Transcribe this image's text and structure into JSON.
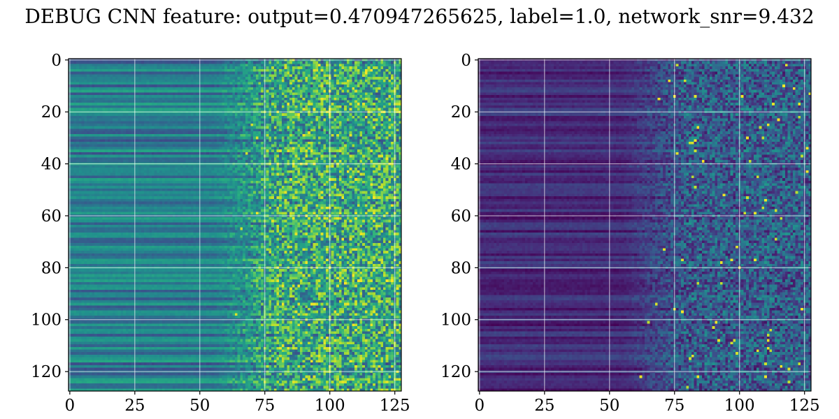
{
  "figure": {
    "title": "DEBUG CNN feature: output=0.470947265625, label=1.0, network_snr=9.432"
  },
  "chart_data": [
    {
      "type": "heatmap",
      "title": "",
      "xlabel": "",
      "ylabel": "",
      "rows": 128,
      "cols": 128,
      "xlim": [
        -0.5,
        127.5
      ],
      "ylim": [
        127.5,
        -0.5
      ],
      "xticks": [
        0,
        25,
        50,
        75,
        100,
        125
      ],
      "xtick_labels": [
        "0",
        "25",
        "50",
        "75",
        "100",
        "125"
      ],
      "yticks": [
        0,
        20,
        40,
        60,
        80,
        100,
        120
      ],
      "ytick_labels": [
        "0",
        "20",
        "40",
        "60",
        "80",
        "100",
        "120"
      ],
      "grid": true,
      "colormap": "viridis",
      "description_of_values": "horizontal banded structure for columns 0-70, noisy speckled texture for columns 75-127 with bright yellow speckles; overall mid-level teal/green",
      "band_level": 0.42,
      "noise_level": 0.45
    },
    {
      "type": "heatmap",
      "title": "",
      "xlabel": "",
      "ylabel": "",
      "rows": 128,
      "cols": 128,
      "xlim": [
        -0.5,
        127.5
      ],
      "ylim": [
        127.5,
        -0.5
      ],
      "xticks": [
        0,
        25,
        50,
        75,
        100,
        125
      ],
      "xtick_labels": [
        "0",
        "25",
        "50",
        "75",
        "100",
        "125"
      ],
      "yticks": [
        0,
        20,
        40,
        60,
        80,
        100,
        120
      ],
      "ytick_labels": [
        "0",
        "20",
        "40",
        "60",
        "80",
        "100",
        "120"
      ],
      "grid": true,
      "colormap": "viridis",
      "description_of_values": "dark purple banded structure for columns 0-60, sparse speckled noise for columns 65-127 with occasional bright green/yellow pixels",
      "band_level": 0.12,
      "noise_level": 0.3
    }
  ]
}
